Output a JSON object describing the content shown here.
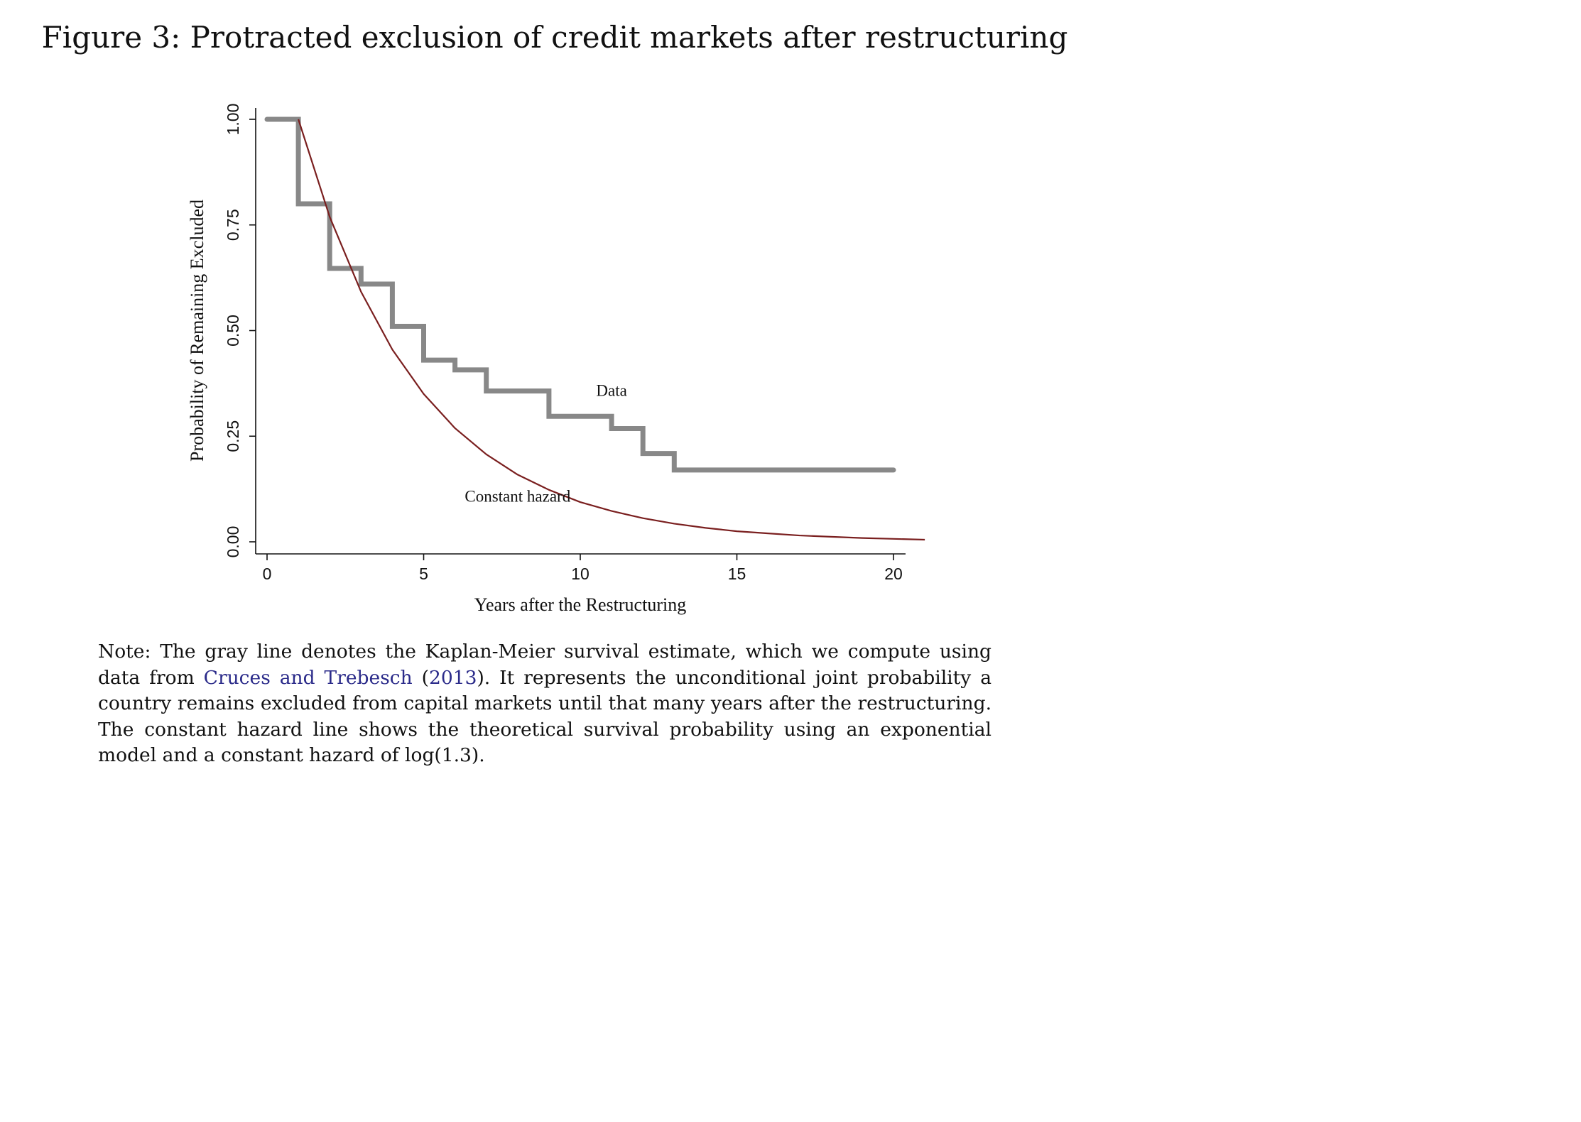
{
  "figure": {
    "title": "Figure 3: Protracted exclusion of credit markets after restructuring"
  },
  "chart_data": {
    "type": "line",
    "xlabel": "Years after the Restructuring",
    "ylabel": "Probability of Remaining Excluded",
    "xlim": [
      0,
      21
    ],
    "ylim": [
      0,
      1
    ],
    "xticks": [
      0,
      5,
      10,
      15,
      20
    ],
    "xtick_labels": [
      "0",
      "5",
      "10",
      "15",
      "20"
    ],
    "yticks": [
      0,
      0.25,
      0.5,
      0.75,
      1.0
    ],
    "ytick_labels": [
      "0.00",
      "0.25",
      "0.50",
      "0.75",
      "1.00"
    ],
    "grid": false,
    "series": [
      {
        "name": "Data",
        "style": "step",
        "color": "#888888",
        "x": [
          0,
          1,
          2,
          3,
          4,
          5,
          6,
          7,
          8,
          9,
          10,
          11,
          12,
          13,
          20
        ],
        "y": [
          1.0,
          0.8,
          0.647,
          0.61,
          0.51,
          0.43,
          0.407,
          0.357,
          0.357,
          0.297,
          0.297,
          0.268,
          0.209,
          0.17,
          0.17
        ]
      },
      {
        "name": "Constant hazard",
        "style": "line",
        "color": "#7a1f1f",
        "x": [
          1,
          2,
          3,
          4,
          5,
          6,
          7,
          8,
          9,
          10,
          11,
          12,
          13,
          14,
          15,
          16,
          17,
          18,
          19,
          20,
          21
        ],
        "y": [
          1.0,
          0.769,
          0.592,
          0.455,
          0.35,
          0.269,
          0.207,
          0.159,
          0.123,
          0.094,
          0.073,
          0.056,
          0.043,
          0.033,
          0.025,
          0.02,
          0.015,
          0.012,
          0.009,
          0.007,
          0.005
        ]
      }
    ],
    "annotations": [
      {
        "text": "Data",
        "x": 11.0,
        "y": 0.345
      },
      {
        "text": "Constant hazard",
        "x": 8.0,
        "y": 0.095
      }
    ]
  },
  "note": {
    "before": "Note: The gray line denotes the Kaplan-Meier survival estimate, which we compute using data from ",
    "cite_authors": "Cruces and Trebesch",
    "cite_open": " (",
    "cite_year": "2013",
    "after": "). It represents the unconditional joint probability a country remains excluded from capital markets until that many years after the restructuring. The constant hazard line shows the theoretical survival probability using an exponential model and a constant hazard of log(1.3)."
  }
}
